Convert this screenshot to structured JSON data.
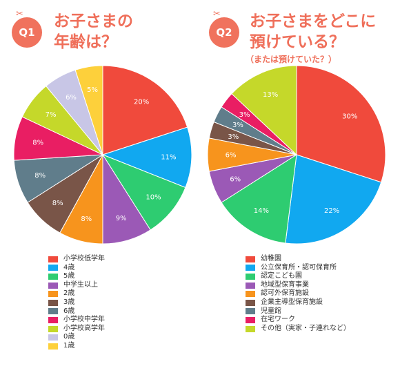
{
  "q1": {
    "badge": "Q1",
    "title_lines": [
      "お子さまの",
      "年齢は？"
    ],
    "chart_data": {
      "type": "pie",
      "title": "お子さまの年齢は？",
      "slices": [
        {
          "label": "小学校低学年",
          "value": 20,
          "color": "#f04a3c"
        },
        {
          "label": "4歳",
          "value": 11,
          "color": "#11a8f0"
        },
        {
          "label": "5歳",
          "value": 10,
          "color": "#2ecc71"
        },
        {
          "label": "中学生以上",
          "value": 9,
          "color": "#9b59b6"
        },
        {
          "label": "2歳",
          "value": 8,
          "color": "#f7941d"
        },
        {
          "label": "3歳",
          "value": 8,
          "color": "#795548"
        },
        {
          "label": "6歳",
          "value": 8,
          "color": "#607d8b"
        },
        {
          "label": "小学校中学年",
          "value": 8,
          "color": "#e91e63"
        },
        {
          "label": "小学校高学年",
          "value": 7,
          "color": "#c5d82a"
        },
        {
          "label": "0歳",
          "value": 6,
          "color": "#c8c6e6"
        },
        {
          "label": "1歳",
          "value": 5,
          "color": "#fdd03b"
        }
      ],
      "unit": "%",
      "legend": "bottom"
    }
  },
  "q2": {
    "badge": "Q2",
    "title_lines": [
      "お子さまをどこに",
      "預けている？"
    ],
    "subtitle": "（または預けていた？）",
    "chart_data": {
      "type": "pie",
      "title": "お子さまをどこに預けている？",
      "slices": [
        {
          "label": "幼稚園",
          "value": 30,
          "color": "#f04a3c"
        },
        {
          "label": "公立保育所・認可保育所",
          "value": 22,
          "color": "#11a8f0"
        },
        {
          "label": "認定こども園",
          "value": 14,
          "color": "#2ecc71"
        },
        {
          "label": "地域型保育事業",
          "value": 6,
          "color": "#9b59b6"
        },
        {
          "label": "認可外保育施設",
          "value": 6,
          "color": "#f7941d"
        },
        {
          "label": "企業主導型保育施設",
          "value": 3,
          "color": "#795548"
        },
        {
          "label": "児童館",
          "value": 3,
          "color": "#607d8b"
        },
        {
          "label": "在宅ワーク",
          "value": 3,
          "color": "#e91e63"
        },
        {
          "label": "その他（実家・子連れなど）",
          "value": 13,
          "color": "#c5d82a"
        }
      ],
      "unit": "%",
      "legend": "bottom"
    }
  }
}
